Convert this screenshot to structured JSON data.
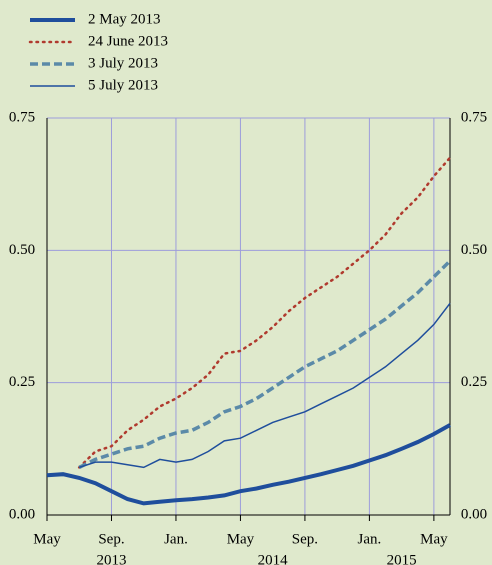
{
  "chart_data": {
    "type": "line",
    "x": [
      "2013-05",
      "2013-06",
      "2013-07",
      "2013-08",
      "2013-09",
      "2013-10",
      "2013-11",
      "2013-12",
      "2014-01",
      "2014-02",
      "2014-03",
      "2014-04",
      "2014-05",
      "2014-06",
      "2014-07",
      "2014-08",
      "2014-09",
      "2014-10",
      "2014-11",
      "2014-12",
      "2015-01",
      "2015-02",
      "2015-03",
      "2015-04",
      "2015-05",
      "2015-06"
    ],
    "series": [
      {
        "name": "2 May 2013",
        "color": "#1f4e9c",
        "line_style": "solid",
        "line_width": 4,
        "values": [
          0.075,
          0.077,
          0.07,
          0.06,
          0.045,
          0.03,
          0.022,
          0.025,
          0.028,
          0.03,
          0.033,
          0.037,
          0.045,
          0.05,
          0.057,
          0.063,
          0.07,
          0.077,
          0.085,
          0.093,
          0.103,
          0.113,
          0.125,
          0.138,
          0.153,
          0.17
        ]
      },
      {
        "name": "24 June 2013",
        "color": "#b03a2e",
        "line_style": "dotted",
        "line_width": 2.5,
        "values": [
          null,
          null,
          0.09,
          0.12,
          0.13,
          0.16,
          0.18,
          0.205,
          0.22,
          0.24,
          0.265,
          0.305,
          0.31,
          0.33,
          0.355,
          0.385,
          0.41,
          0.43,
          0.45,
          0.475,
          0.5,
          0.53,
          0.57,
          0.6,
          0.64,
          0.675
        ]
      },
      {
        "name": "3 July 2013",
        "color": "#5b8aa8",
        "line_style": "dashed",
        "line_width": 3.5,
        "values": [
          null,
          null,
          0.09,
          0.105,
          0.115,
          0.125,
          0.13,
          0.145,
          0.155,
          0.16,
          0.175,
          0.195,
          0.205,
          0.22,
          0.24,
          0.26,
          0.28,
          0.295,
          0.31,
          0.33,
          0.35,
          0.37,
          0.395,
          0.42,
          0.45,
          0.48
        ]
      },
      {
        "name": "5 July 2013",
        "color": "#1f4e9c",
        "line_style": "solid",
        "line_width": 1.5,
        "values": [
          null,
          null,
          0.09,
          0.1,
          0.1,
          0.095,
          0.09,
          0.105,
          0.1,
          0.105,
          0.12,
          0.14,
          0.145,
          0.16,
          0.175,
          0.185,
          0.195,
          0.21,
          0.225,
          0.24,
          0.26,
          0.28,
          0.305,
          0.33,
          0.36,
          0.4
        ]
      }
    ],
    "xlim": [
      "2013-05",
      "2015-06"
    ],
    "xticks": [
      {
        "value": "2013-05",
        "label": "May"
      },
      {
        "value": "2013-09",
        "label": "Sep."
      },
      {
        "value": "2014-01",
        "label": "Jan."
      },
      {
        "value": "2014-05",
        "label": "May"
      },
      {
        "value": "2014-09",
        "label": "Sep."
      },
      {
        "value": "2015-01",
        "label": "Jan."
      },
      {
        "value": "2015-05",
        "label": "May"
      }
    ],
    "year_labels": [
      {
        "value": "2013-09",
        "label": "2013"
      },
      {
        "value": "2014-07",
        "label": "2014"
      },
      {
        "value": "2015-03",
        "label": "2015"
      }
    ],
    "ylim": [
      0,
      0.75
    ],
    "yticks": [
      {
        "value": 0,
        "label": "0.00"
      },
      0.25,
      {
        "value": 0.5,
        "label": "0.50"
      },
      0.75
    ],
    "grid": true,
    "legend": "top-left"
  }
}
